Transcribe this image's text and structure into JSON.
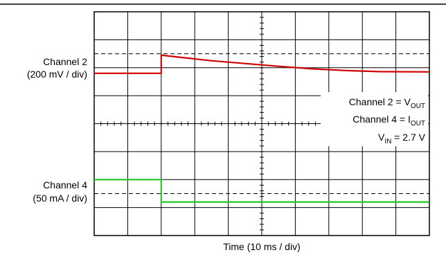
{
  "chart_data": {
    "type": "line",
    "title": "",
    "xlabel": "Time (10 ms / div)",
    "ylabel": "",
    "grid": true,
    "x_divisions": 10,
    "y_divisions": 8,
    "x_unit": "div",
    "x_range_div": [
      0,
      10
    ],
    "y_range_div": [
      0,
      8
    ],
    "channel_labels": [
      {
        "name": "Channel 2",
        "scale": "(200 mV / div)"
      },
      {
        "name": "Channel 4",
        "scale": "(50 mA / div)"
      }
    ],
    "reference_lines_div": [
      6.5,
      1.5
    ],
    "annotations": [
      {
        "text": "Channel 2 = V",
        "sub": "OUT"
      },
      {
        "text": "Channel 4 = I",
        "sub": "OUT"
      },
      {
        "text": "V",
        "sub": "IN",
        "suffix": " = 2.7 V"
      }
    ],
    "series": [
      {
        "color": "#d00000",
        "x": [
          0,
          2.0,
          2.0,
          2.5,
          3.5,
          4.5,
          5.5,
          6.5,
          7.5,
          8.5,
          10
        ],
        "y": [
          5.8,
          5.8,
          6.45,
          6.38,
          6.25,
          6.15,
          6.05,
          5.96,
          5.9,
          5.86,
          5.85
        ]
      },
      {
        "color": "#1ec81e",
        "x": [
          0,
          2.0,
          2.0,
          10
        ],
        "y": [
          2.0,
          2.0,
          1.2,
          1.2
        ]
      }
    ],
    "colors": {
      "grid": "#000000",
      "background": "#ffffff"
    }
  }
}
